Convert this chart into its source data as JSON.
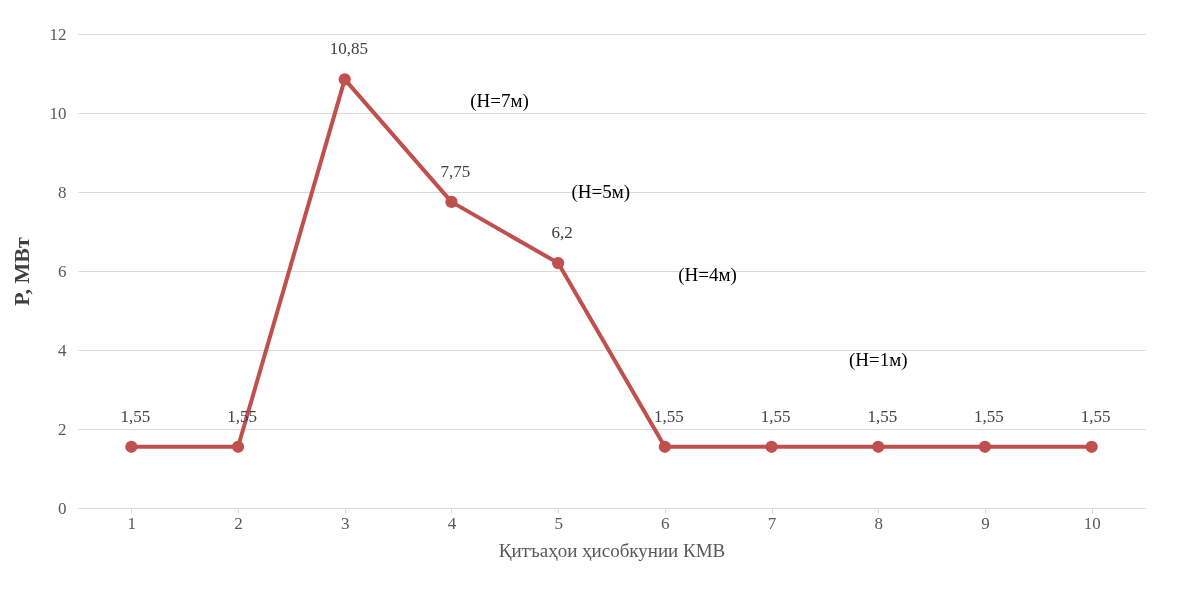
{
  "chart_data": {
    "type": "line",
    "xlabel": "Қитъаҳои ҳисобкунии КМВ",
    "ylabel": "P, МВт",
    "categories": [
      "1",
      "2",
      "3",
      "4",
      "5",
      "6",
      "7",
      "8",
      "9",
      "10"
    ],
    "series": [
      {
        "color": "#c0504d",
        "values": [
          1.55,
          1.55,
          10.85,
          7.75,
          6.2,
          1.55,
          1.55,
          1.55,
          1.55,
          1.55
        ],
        "value_labels": [
          "1,55",
          "1,55",
          "10,85",
          "7,75",
          "6,2",
          "1,55",
          "1,55",
          "1,55",
          "1,55",
          "1,55"
        ]
      }
    ],
    "ylim": [
      0,
      12
    ],
    "yticks": [
      0,
      2,
      4,
      6,
      8,
      10,
      12
    ],
    "grid": "y",
    "marker": "circle",
    "line_style": "solid",
    "annotations": [
      "(H=7м)",
      "(H=5м)",
      "(H=4м)",
      "(H=1м)"
    ]
  }
}
